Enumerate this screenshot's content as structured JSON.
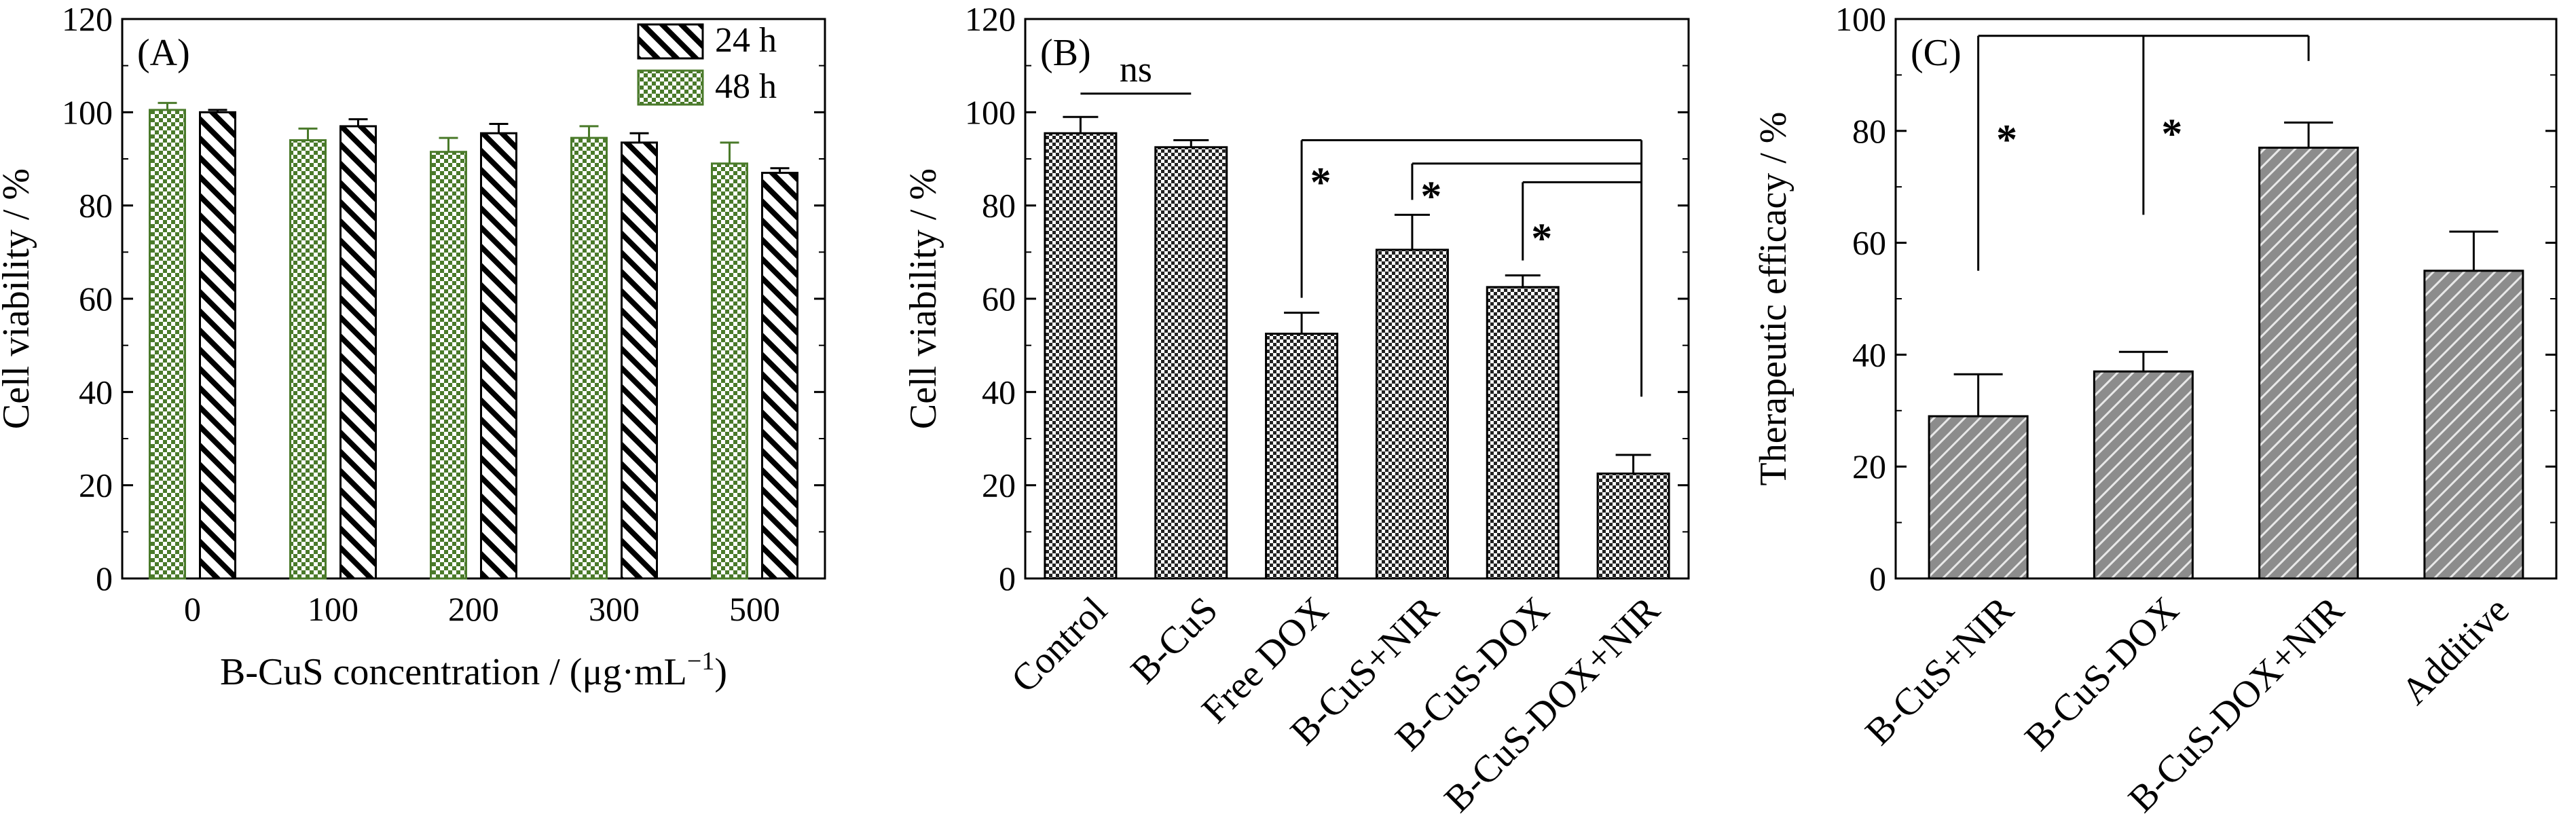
{
  "chart_data": [
    {
      "panel": "(A)",
      "type": "bar",
      "categories": [
        "0",
        "100",
        "200",
        "300",
        "500"
      ],
      "xlabel_main": "B-CuS concentration / (μg·mL",
      "xlabel_sup": "−1",
      "xlabel_close": ")",
      "ylabel": "Cell viability / %",
      "ylim": [
        0,
        120
      ],
      "yticks": [
        "0",
        "20",
        "40",
        "60",
        "80",
        "100",
        "120"
      ],
      "legend_position": "top-right",
      "series": [
        {
          "name": "48 h",
          "values": [
            100.5,
            94,
            91.5,
            94.5,
            89
          ],
          "errors": [
            1.5,
            2.5,
            3,
            2.5,
            4.5
          ],
          "color": "#4a7a2a",
          "fill": "checker"
        },
        {
          "name": "24 h",
          "values": [
            100,
            97,
            95.5,
            93.5,
            87
          ],
          "errors": [
            0.5,
            1.5,
            2,
            2,
            1
          ],
          "color": "#000000",
          "fill": "hatch"
        }
      ]
    },
    {
      "panel": "(B)",
      "type": "bar",
      "categories": [
        "Control",
        "B-CuS",
        "Free DOX",
        "B-CuS+NIR",
        "B-CuS-DOX",
        "B-CuS-DOX+NIR"
      ],
      "values": [
        95.5,
        92.5,
        52.5,
        70.5,
        62.5,
        22.5
      ],
      "errors": [
        3.5,
        1.5,
        4.5,
        7.5,
        2.5,
        4
      ],
      "ylabel": "Cell viability / %",
      "ylim": [
        0,
        120
      ],
      "yticks": [
        "0",
        "20",
        "40",
        "60",
        "80",
        "100",
        "120"
      ],
      "annotations": {
        "ns": "ns",
        "star": "*"
      }
    },
    {
      "panel": "(C)",
      "type": "bar",
      "categories": [
        "B-CuS+NIR",
        "B-CuS-DOX",
        "B-CuS-DOX+NIR",
        "Additive"
      ],
      "values": [
        29,
        37,
        77,
        55
      ],
      "errors": [
        7.5,
        3.5,
        4.5,
        7
      ],
      "ylabel": "Therapeutic efficacy / %",
      "ylim": [
        0,
        100
      ],
      "yticks": [
        "0",
        "20",
        "40",
        "60",
        "80",
        "100"
      ],
      "annotations": {
        "star": "*"
      }
    }
  ]
}
